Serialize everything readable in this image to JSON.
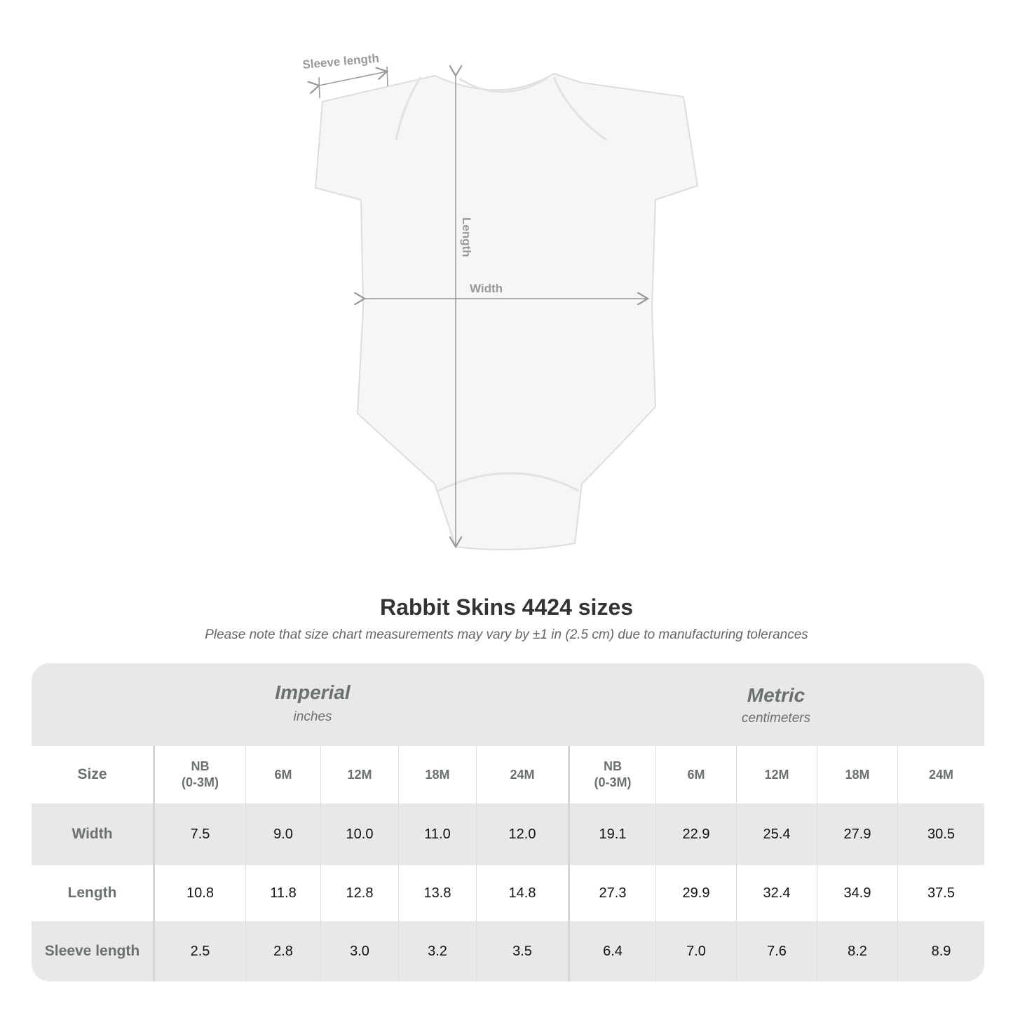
{
  "diagram": {
    "sleeve_label": "Sleeve length",
    "length_label": "Length",
    "width_label": "Width"
  },
  "title": "Rabbit Skins 4424 sizes",
  "note": "Please note that size chart measurements may vary by ±1 in (2.5 cm) due to manufacturing tolerances",
  "table": {
    "imperial": {
      "name": "Imperial",
      "unit": "inches"
    },
    "metric": {
      "name": "Metric",
      "unit": "centimeters"
    },
    "size_label": "Size",
    "sizes": [
      "NB\n(0-3M)",
      "6M",
      "12M",
      "18M",
      "24M",
      "NB\n(0-3M)",
      "6M",
      "12M",
      "18M",
      "24M"
    ],
    "rows": [
      {
        "label": "Width",
        "values": [
          "7.5",
          "9.0",
          "10.0",
          "11.0",
          "12.0",
          "19.1",
          "22.9",
          "25.4",
          "27.9",
          "30.5"
        ]
      },
      {
        "label": "Length",
        "values": [
          "10.8",
          "11.8",
          "12.8",
          "13.8",
          "14.8",
          "27.3",
          "29.9",
          "32.4",
          "34.9",
          "37.5"
        ]
      },
      {
        "label": "Sleeve length",
        "values": [
          "2.5",
          "2.8",
          "3.0",
          "3.2",
          "3.5",
          "6.4",
          "7.0",
          "7.6",
          "8.2",
          "8.9"
        ]
      }
    ]
  },
  "colors": {
    "header_text": "#6b7071",
    "band": "#e8e8e8",
    "measure_line": "#999999"
  }
}
